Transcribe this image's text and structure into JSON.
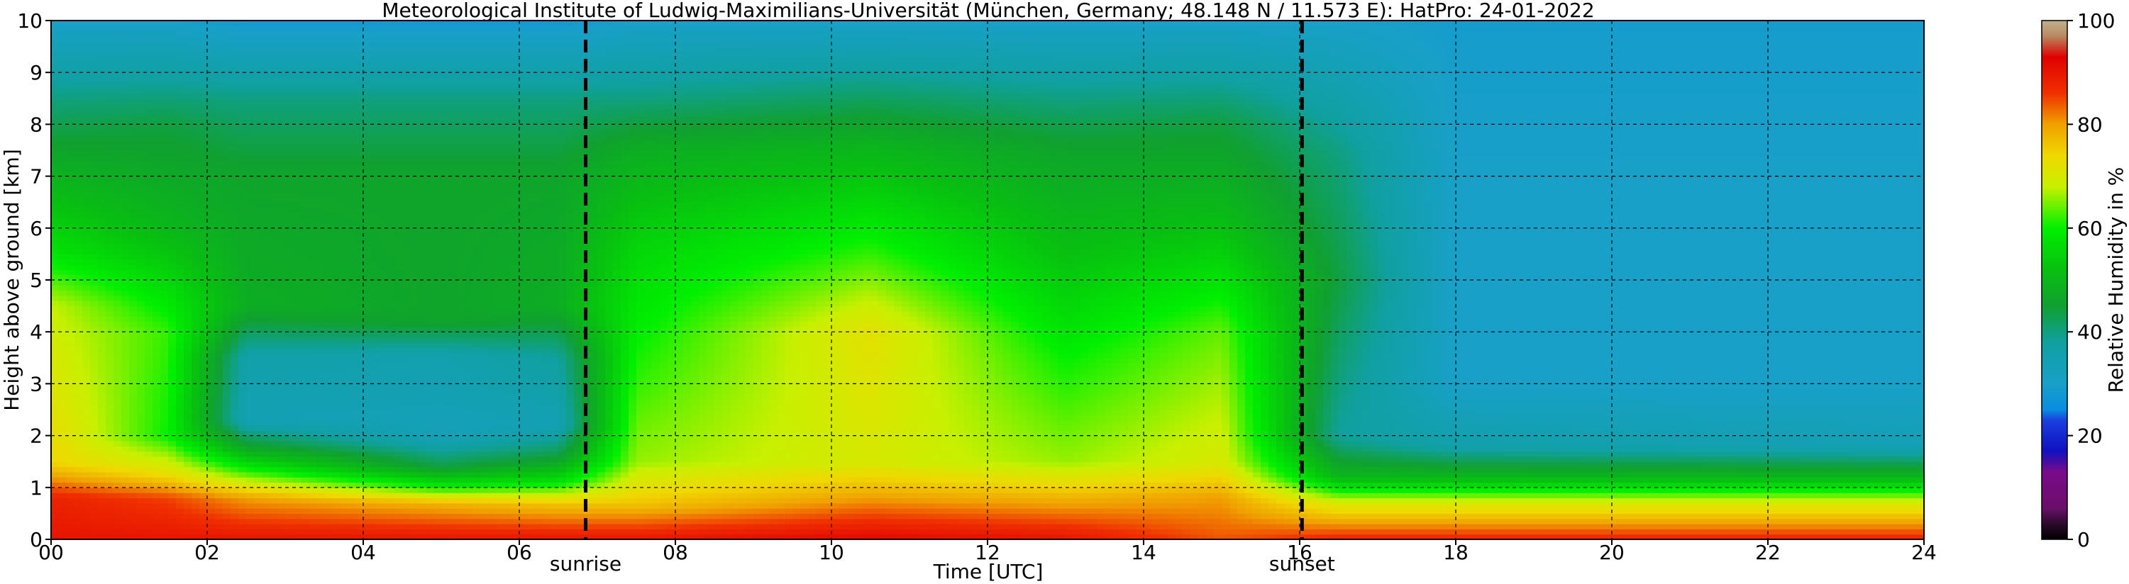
{
  "chart_data": {
    "type": "heatmap",
    "title": "Meteorological Institute of Ludwig-Maximilians-Universität (München, Germany; 48.148 N / 11.573 E):    HatPro: 24-01-2022",
    "xlabel": "Time [UTC]",
    "ylabel": "Height above ground [km]",
    "xlim": [
      0,
      24
    ],
    "ylim": [
      0,
      10
    ],
    "x_ticks": [
      "00",
      "02",
      "04",
      "06",
      "08",
      "10",
      "12",
      "14",
      "16",
      "18",
      "20",
      "22",
      "24"
    ],
    "y_ticks": [
      "0",
      "1",
      "2",
      "3",
      "4",
      "5",
      "6",
      "7",
      "8",
      "9",
      "10"
    ],
    "grid": true,
    "annotations": [
      {
        "label": "sunrise",
        "x": 6.85
      },
      {
        "label": "sunset",
        "x": 16.03
      }
    ],
    "colorbar": {
      "label": "Relative Humidity in %",
      "range": [
        0,
        100
      ],
      "ticks": [
        "0",
        "20",
        "40",
        "60",
        "80",
        "100"
      ],
      "stops": [
        {
          "value": 0,
          "color": "#000000"
        },
        {
          "value": 3,
          "color": "#2b0b2b"
        },
        {
          "value": 6,
          "color": "#6a0f6a"
        },
        {
          "value": 13,
          "color": "#7a0a8a"
        },
        {
          "value": 17,
          "color": "#1010c0"
        },
        {
          "value": 23,
          "color": "#1a40e0"
        },
        {
          "value": 25,
          "color": "#0a8de0"
        },
        {
          "value": 30,
          "color": "#18a0c8"
        },
        {
          "value": 38,
          "color": "#10a0a0"
        },
        {
          "value": 45,
          "color": "#10a030"
        },
        {
          "value": 52,
          "color": "#08c010"
        },
        {
          "value": 60,
          "color": "#00f000"
        },
        {
          "value": 68,
          "color": "#c8f000"
        },
        {
          "value": 74,
          "color": "#f0d800"
        },
        {
          "value": 80,
          "color": "#f0a000"
        },
        {
          "value": 86,
          "color": "#f03000"
        },
        {
          "value": 93,
          "color": "#e00000"
        },
        {
          "value": 97,
          "color": "#b88a60"
        },
        {
          "value": 100,
          "color": "#c0b090"
        }
      ]
    },
    "series": [
      {
        "time": 0.0,
        "profile": [
          {
            "height": 0.0,
            "rh": 90
          },
          {
            "height": 0.8,
            "rh": 88
          },
          {
            "height": 1.5,
            "rh": 74
          },
          {
            "height": 4.5,
            "rh": 68
          },
          {
            "height": 5.5,
            "rh": 58
          },
          {
            "height": 7.5,
            "rh": 46
          },
          {
            "height": 8.5,
            "rh": 40
          },
          {
            "height": 10.0,
            "rh": 30
          }
        ]
      },
      {
        "time": 1.5,
        "profile": [
          {
            "height": 0.0,
            "rh": 90
          },
          {
            "height": 0.8,
            "rh": 85
          },
          {
            "height": 1.3,
            "rh": 72
          },
          {
            "height": 2.0,
            "rh": 60
          },
          {
            "height": 4.0,
            "rh": 62
          },
          {
            "height": 6.0,
            "rh": 50
          },
          {
            "height": 8.0,
            "rh": 44
          },
          {
            "height": 10.0,
            "rh": 30
          }
        ]
      },
      {
        "time": 2.5,
        "profile": [
          {
            "height": 0.0,
            "rh": 90
          },
          {
            "height": 0.8,
            "rh": 80
          },
          {
            "height": 1.3,
            "rh": 62
          },
          {
            "height": 1.8,
            "rh": 46
          },
          {
            "height": 2.3,
            "rh": 34
          },
          {
            "height": 3.5,
            "rh": 36
          },
          {
            "height": 4.5,
            "rh": 48
          },
          {
            "height": 7.0,
            "rh": 46
          },
          {
            "height": 8.5,
            "rh": 40
          },
          {
            "height": 10.0,
            "rh": 28
          }
        ]
      },
      {
        "time": 5.0,
        "profile": [
          {
            "height": 0.0,
            "rh": 90
          },
          {
            "height": 0.7,
            "rh": 78
          },
          {
            "height": 1.0,
            "rh": 60
          },
          {
            "height": 1.4,
            "rh": 44
          },
          {
            "height": 2.0,
            "rh": 33
          },
          {
            "height": 3.5,
            "rh": 35
          },
          {
            "height": 4.2,
            "rh": 46
          },
          {
            "height": 7.0,
            "rh": 46
          },
          {
            "height": 8.5,
            "rh": 40
          },
          {
            "height": 10.0,
            "rh": 28
          }
        ]
      },
      {
        "time": 6.5,
        "profile": [
          {
            "height": 0.0,
            "rh": 90
          },
          {
            "height": 0.7,
            "rh": 76
          },
          {
            "height": 1.1,
            "rh": 58
          },
          {
            "height": 1.6,
            "rh": 44
          },
          {
            "height": 2.2,
            "rh": 34
          },
          {
            "height": 3.5,
            "rh": 38
          },
          {
            "height": 4.5,
            "rh": 48
          },
          {
            "height": 7.0,
            "rh": 46
          },
          {
            "height": 8.5,
            "rh": 40
          },
          {
            "height": 10.0,
            "rh": 28
          }
        ]
      },
      {
        "time": 7.5,
        "profile": [
          {
            "height": 0.0,
            "rh": 90
          },
          {
            "height": 0.7,
            "rh": 76
          },
          {
            "height": 1.5,
            "rh": 66
          },
          {
            "height": 3.0,
            "rh": 62
          },
          {
            "height": 5.5,
            "rh": 56
          },
          {
            "height": 7.5,
            "rh": 48
          },
          {
            "height": 8.5,
            "rh": 40
          },
          {
            "height": 10.0,
            "rh": 30
          }
        ]
      },
      {
        "time": 10.5,
        "profile": [
          {
            "height": 0.0,
            "rh": 92
          },
          {
            "height": 0.8,
            "rh": 80
          },
          {
            "height": 1.5,
            "rh": 70
          },
          {
            "height": 4.0,
            "rh": 72
          },
          {
            "height": 5.5,
            "rh": 62
          },
          {
            "height": 7.5,
            "rh": 50
          },
          {
            "height": 8.5,
            "rh": 42
          },
          {
            "height": 10.0,
            "rh": 30
          }
        ]
      },
      {
        "time": 13.0,
        "profile": [
          {
            "height": 0.0,
            "rh": 90
          },
          {
            "height": 0.8,
            "rh": 78
          },
          {
            "height": 1.5,
            "rh": 66
          },
          {
            "height": 3.5,
            "rh": 60
          },
          {
            "height": 5.5,
            "rh": 52
          },
          {
            "height": 7.5,
            "rh": 46
          },
          {
            "height": 8.5,
            "rh": 40
          },
          {
            "height": 10.0,
            "rh": 30
          }
        ]
      },
      {
        "time": 15.0,
        "profile": [
          {
            "height": 0.0,
            "rh": 84
          },
          {
            "height": 0.8,
            "rh": 80
          },
          {
            "height": 1.5,
            "rh": 70
          },
          {
            "height": 4.0,
            "rh": 64
          },
          {
            "height": 6.0,
            "rh": 52
          },
          {
            "height": 8.0,
            "rh": 44
          },
          {
            "height": 10.0,
            "rh": 30
          }
        ]
      },
      {
        "time": 16.5,
        "profile": [
          {
            "height": 0.0,
            "rh": 88
          },
          {
            "height": 0.7,
            "rh": 70
          },
          {
            "height": 1.2,
            "rh": 50
          },
          {
            "height": 2.0,
            "rh": 38
          },
          {
            "height": 5.0,
            "rh": 44
          },
          {
            "height": 7.5,
            "rh": 40
          },
          {
            "height": 10.0,
            "rh": 30
          }
        ]
      },
      {
        "time": 18.0,
        "profile": [
          {
            "height": 0.0,
            "rh": 88
          },
          {
            "height": 0.7,
            "rh": 70
          },
          {
            "height": 1.2,
            "rh": 50
          },
          {
            "height": 1.8,
            "rh": 36
          },
          {
            "height": 3.0,
            "rh": 30
          },
          {
            "height": 7.0,
            "rh": 30
          },
          {
            "height": 10.0,
            "rh": 29
          }
        ]
      },
      {
        "time": 24.0,
        "profile": [
          {
            "height": 0.0,
            "rh": 88
          },
          {
            "height": 0.7,
            "rh": 70
          },
          {
            "height": 1.2,
            "rh": 50
          },
          {
            "height": 1.8,
            "rh": 34
          },
          {
            "height": 3.0,
            "rh": 30
          },
          {
            "height": 7.0,
            "rh": 30
          },
          {
            "height": 10.0,
            "rh": 29
          }
        ]
      }
    ]
  }
}
